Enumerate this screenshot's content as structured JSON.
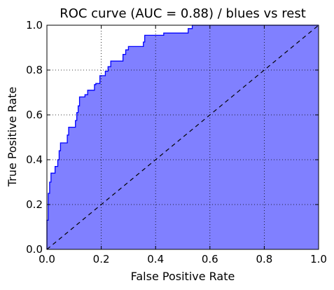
{
  "chart_data": {
    "type": "area",
    "title": "ROC curve (AUC = 0.88) / blues vs rest",
    "xlabel": "False Positive Rate",
    "ylabel": "True Positive Rate",
    "xlim": [
      0.0,
      1.0
    ],
    "ylim": [
      0.0,
      1.0
    ],
    "x_ticks": [
      "0.0",
      "0.2",
      "0.4",
      "0.6",
      "0.8",
      "1.0"
    ],
    "y_ticks": [
      "0.0",
      "0.2",
      "0.4",
      "0.6",
      "0.8",
      "1.0"
    ],
    "grid": true,
    "series": [
      {
        "kind": "roc-curve",
        "color": "#0000ff",
        "fill_color": "#8080ff",
        "points": [
          [
            0.0,
            0.0
          ],
          [
            0.0,
            0.13
          ],
          [
            0.005,
            0.13
          ],
          [
            0.005,
            0.25
          ],
          [
            0.01,
            0.25
          ],
          [
            0.01,
            0.3
          ],
          [
            0.015,
            0.3
          ],
          [
            0.015,
            0.34
          ],
          [
            0.03,
            0.34
          ],
          [
            0.03,
            0.37
          ],
          [
            0.04,
            0.37
          ],
          [
            0.04,
            0.4
          ],
          [
            0.045,
            0.4
          ],
          [
            0.045,
            0.44
          ],
          [
            0.05,
            0.44
          ],
          [
            0.05,
            0.475
          ],
          [
            0.075,
            0.475
          ],
          [
            0.075,
            0.51
          ],
          [
            0.08,
            0.51
          ],
          [
            0.08,
            0.545
          ],
          [
            0.105,
            0.545
          ],
          [
            0.105,
            0.575
          ],
          [
            0.11,
            0.575
          ],
          [
            0.11,
            0.61
          ],
          [
            0.115,
            0.61
          ],
          [
            0.115,
            0.64
          ],
          [
            0.12,
            0.64
          ],
          [
            0.12,
            0.68
          ],
          [
            0.14,
            0.68
          ],
          [
            0.14,
            0.69
          ],
          [
            0.15,
            0.69
          ],
          [
            0.15,
            0.71
          ],
          [
            0.175,
            0.71
          ],
          [
            0.175,
            0.735
          ],
          [
            0.18,
            0.735
          ],
          [
            0.18,
            0.74
          ],
          [
            0.195,
            0.74
          ],
          [
            0.195,
            0.775
          ],
          [
            0.215,
            0.775
          ],
          [
            0.215,
            0.795
          ],
          [
            0.225,
            0.795
          ],
          [
            0.225,
            0.815
          ],
          [
            0.235,
            0.815
          ],
          [
            0.235,
            0.84
          ],
          [
            0.28,
            0.84
          ],
          [
            0.28,
            0.87
          ],
          [
            0.29,
            0.87
          ],
          [
            0.29,
            0.89
          ],
          [
            0.3,
            0.89
          ],
          [
            0.3,
            0.905
          ],
          [
            0.355,
            0.905
          ],
          [
            0.355,
            0.925
          ],
          [
            0.36,
            0.925
          ],
          [
            0.36,
            0.955
          ],
          [
            0.43,
            0.955
          ],
          [
            0.43,
            0.965
          ],
          [
            0.52,
            0.965
          ],
          [
            0.52,
            0.985
          ],
          [
            0.535,
            0.985
          ],
          [
            0.535,
            1.0
          ],
          [
            1.0,
            1.0
          ]
        ]
      },
      {
        "kind": "chance-diagonal",
        "color": "#000000",
        "points": [
          [
            0.0,
            0.0
          ],
          [
            1.0,
            1.0
          ]
        ]
      }
    ]
  }
}
